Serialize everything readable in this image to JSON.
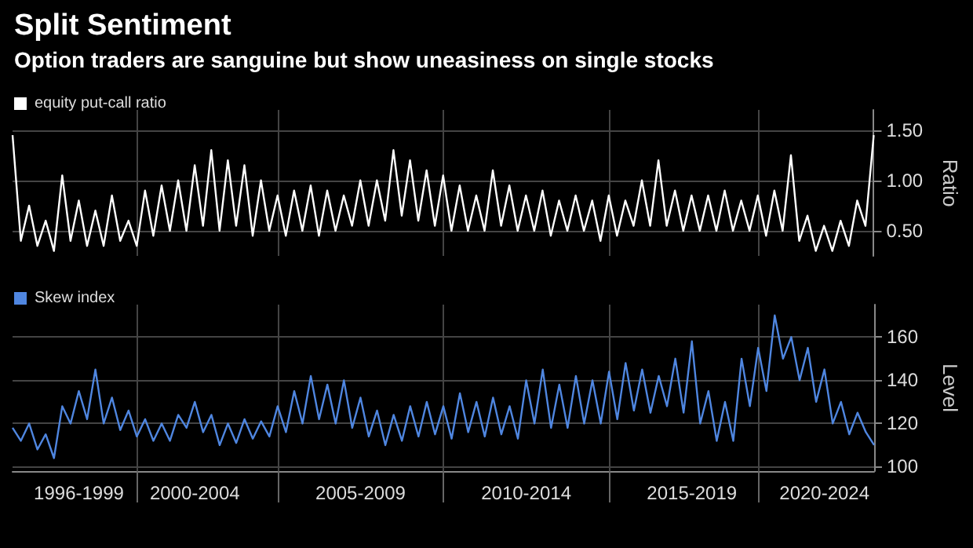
{
  "chart_data": [
    {
      "type": "line",
      "title": "Split Sentiment",
      "subtitle": "Option traders are sanguine but show uneasiness on single stocks",
      "ylabel": "Ratio",
      "legend": "top left",
      "grid": true,
      "tick_labels": "y",
      "marker": "none",
      "categories": [
        null,
        null,
        null,
        null,
        null,
        null,
        null,
        null,
        null,
        null,
        null,
        null,
        null,
        null,
        null,
        null,
        null,
        null,
        null,
        null,
        null,
        null,
        null,
        null,
        null,
        null,
        null,
        null,
        null,
        null,
        null,
        null,
        null,
        null,
        null,
        null,
        null,
        null,
        null,
        null,
        null,
        null,
        null,
        null,
        null,
        null,
        null,
        null,
        null,
        null,
        null,
        null,
        null,
        null,
        null,
        null,
        null,
        null,
        null,
        null,
        null,
        null,
        null,
        null,
        null,
        null,
        null,
        null,
        null,
        null,
        null,
        null,
        null,
        null,
        null,
        null,
        null,
        null,
        null,
        null,
        null,
        null,
        null,
        null,
        null,
        null,
        null,
        null,
        null,
        null,
        null,
        null,
        null,
        null,
        null,
        null,
        null,
        null,
        null,
        null,
        null,
        null,
        null,
        null,
        null
      ],
      "series": [
        {
          "name": "equity put-call ratio",
          "color": "#ffffff",
          "values": [
            1.45,
            0.4,
            0.75,
            0.35,
            0.6,
            0.3,
            1.05,
            0.4,
            0.8,
            0.35,
            0.7,
            0.35,
            0.85,
            0.4,
            0.6,
            0.35,
            0.9,
            0.45,
            0.95,
            0.5,
            1.0,
            0.5,
            1.15,
            0.55,
            1.3,
            0.5,
            1.2,
            0.55,
            1.15,
            0.45,
            1.0,
            0.5,
            0.85,
            0.45,
            0.9,
            0.5,
            0.95,
            0.45,
            0.9,
            0.5,
            0.85,
            0.55,
            1.0,
            0.55,
            1.0,
            0.6,
            1.3,
            0.65,
            1.2,
            0.6,
            1.1,
            0.55,
            1.05,
            0.5,
            0.95,
            0.5,
            0.85,
            0.5,
            1.1,
            0.55,
            0.95,
            0.5,
            0.85,
            0.5,
            0.9,
            0.45,
            0.8,
            0.5,
            0.85,
            0.5,
            0.8,
            0.4,
            0.85,
            0.45,
            0.8,
            0.55,
            1.0,
            0.55,
            1.2,
            0.55,
            0.9,
            0.5,
            0.85,
            0.5,
            0.85,
            0.5,
            0.9,
            0.5,
            0.8,
            0.5,
            0.85,
            0.45,
            0.9,
            0.5,
            1.25,
            0.4,
            0.65,
            0.3,
            0.55,
            0.3,
            0.6,
            0.35,
            0.8,
            0.55,
            1.45
          ]
        }
      ],
      "ylim": [
        0.25,
        1.7
      ],
      "yticks": [
        {
          "value": 0.5,
          "label": "0.50"
        },
        {
          "value": 1.0,
          "label": "1.00"
        },
        {
          "value": 1.5,
          "label": "1.50"
        }
      ]
    },
    {
      "type": "line",
      "ylabel": "Level",
      "legend": "top left",
      "grid": true,
      "marker": "none",
      "categories": [
        null,
        null,
        null,
        null,
        null,
        null,
        null,
        null,
        "1996-1999",
        null,
        null,
        null,
        null,
        null,
        null,
        null,
        null,
        null,
        null,
        null,
        null,
        null,
        "2000-2004",
        null,
        null,
        null,
        null,
        null,
        null,
        null,
        null,
        null,
        null,
        null,
        null,
        null,
        null,
        null,
        null,
        null,
        null,
        null,
        "2005-2009",
        null,
        null,
        null,
        null,
        null,
        null,
        null,
        null,
        null,
        null,
        null,
        null,
        null,
        null,
        null,
        null,
        null,
        null,
        null,
        "2010-2014",
        null,
        null,
        null,
        null,
        null,
        null,
        null,
        null,
        null,
        null,
        null,
        null,
        null,
        null,
        null,
        null,
        null,
        null,
        null,
        "2015-2019",
        null,
        null,
        null,
        null,
        null,
        null,
        null,
        null,
        null,
        null,
        null,
        null,
        null,
        null,
        null,
        "2020-2024",
        null,
        null,
        null,
        null,
        null,
        null
      ],
      "series": [
        {
          "name": "Skew index",
          "color": "#4f86e0",
          "values": [
            118,
            112,
            120,
            108,
            115,
            104,
            128,
            120,
            135,
            122,
            145,
            120,
            132,
            117,
            126,
            114,
            122,
            112,
            120,
            112,
            124,
            118,
            130,
            116,
            124,
            110,
            120,
            111,
            122,
            113,
            121,
            114,
            128,
            116,
            135,
            120,
            142,
            122,
            138,
            120,
            140,
            118,
            132,
            114,
            126,
            110,
            124,
            112,
            128,
            114,
            130,
            115,
            128,
            113,
            134,
            116,
            130,
            114,
            132,
            115,
            128,
            113,
            140,
            120,
            145,
            118,
            138,
            118,
            142,
            120,
            140,
            120,
            144,
            122,
            148,
            126,
            145,
            125,
            142,
            128,
            150,
            125,
            158,
            120,
            135,
            112,
            130,
            112,
            150,
            128,
            155,
            135,
            170,
            150,
            160,
            140,
            155,
            130,
            145,
            120,
            130,
            115,
            125,
            116,
            110
          ]
        }
      ],
      "ylim": [
        98,
        175
      ],
      "yticks": [
        100,
        120,
        140,
        160
      ]
    }
  ]
}
